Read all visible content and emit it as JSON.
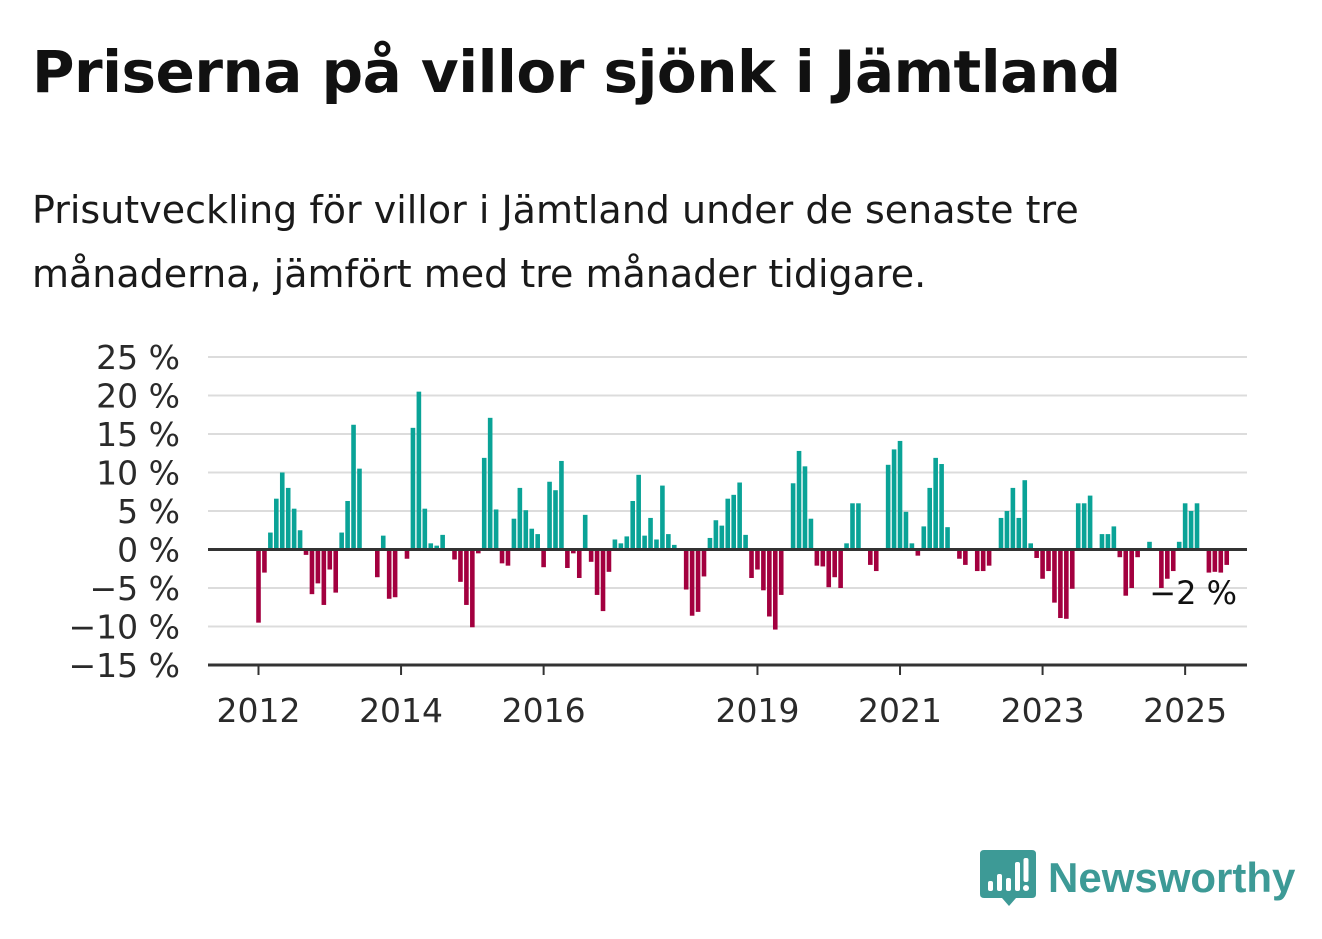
{
  "header": {
    "title": "Priserna på villor sjönk i Jämtland",
    "subtitle": "Prisutveckling för villor i Jämtland under de senaste tre månaderna, jämfört med tre månader tidigare."
  },
  "brand": {
    "name": "Newsworthy",
    "icon": "newsworthy-logo-icon",
    "color": "#3d9a96"
  },
  "colors": {
    "positive": "#0aa397",
    "negative": "#a3003f",
    "grid": "#dcdcdc",
    "axis": "#333333"
  },
  "chart_data": {
    "type": "bar",
    "x_start": "2012-01",
    "y_ticks": [
      25,
      20,
      15,
      10,
      5,
      0,
      -5,
      -10,
      -15
    ],
    "y_tick_labels": [
      "25 %",
      "20 %",
      "15 %",
      "10 %",
      "5 %",
      "0 %",
      "−5 %",
      "−10 %",
      "−15 %"
    ],
    "ylim": [
      -15,
      25
    ],
    "x_ticks": [
      {
        "label": "2012",
        "index": 0
      },
      {
        "label": "2014",
        "index": 24
      },
      {
        "label": "2016",
        "index": 48
      },
      {
        "label": "2019",
        "index": 84
      },
      {
        "label": "2021",
        "index": 108
      },
      {
        "label": "2023",
        "index": 132
      },
      {
        "label": "2025",
        "index": 156
      }
    ],
    "last_value_label": "−2 %",
    "values": [
      -9.5,
      -3,
      2.2,
      6.6,
      10,
      8,
      5.3,
      2.5,
      -0.7,
      -5.8,
      -4.4,
      -7.2,
      -2.6,
      -5.6,
      2.2,
      6.3,
      16.2,
      10.5,
      0,
      0,
      -3.6,
      1.8,
      -6.4,
      -6.2,
      0,
      -1.2,
      15.8,
      20.5,
      5.3,
      0.8,
      0.5,
      1.9,
      0,
      -1.3,
      -4.2,
      -7.2,
      -10.1,
      -0.5,
      11.9,
      17.1,
      5.2,
      -1.8,
      -2.1,
      4,
      8,
      5.1,
      2.7,
      2,
      -2.3,
      8.8,
      7.7,
      11.5,
      -2.4,
      -0.5,
      -3.7,
      4.5,
      -1.6,
      -5.9,
      -8,
      -2.9,
      1.3,
      0.8,
      1.7,
      6.3,
      9.7,
      1.8,
      4.1,
      1.3,
      8.3,
      2,
      0.6,
      0,
      -5.2,
      -8.6,
      -8.1,
      -3.5,
      1.5,
      3.8,
      3.1,
      6.6,
      7.1,
      8.7,
      1.9,
      -3.7,
      -2.6,
      -5.3,
      -8.7,
      -10.4,
      -5.9,
      0,
      8.6,
      12.8,
      10.8,
      4,
      -2.1,
      -2.2,
      -4.9,
      -3.6,
      -5,
      0.8,
      6,
      6,
      0,
      -2,
      -2.8,
      0,
      11,
      13,
      14.1,
      4.9,
      0.8,
      -0.8,
      3,
      8,
      11.9,
      11.1,
      2.9,
      0,
      -1.2,
      -2,
      0,
      -2.8,
      -2.8,
      -2.1,
      0,
      4.1,
      5,
      8,
      4.1,
      9,
      0.8,
      -1.1,
      -3.8,
      -2.8,
      -6.9,
      -8.9,
      -9,
      -5.1,
      6,
      6,
      7,
      0,
      2,
      2,
      3,
      -1,
      -6,
      -5,
      -1,
      0,
      1,
      0,
      -5,
      -3.8,
      -2.8,
      1,
      6,
      5,
      6,
      0,
      -3,
      -2.9,
      -3,
      -2
    ]
  }
}
